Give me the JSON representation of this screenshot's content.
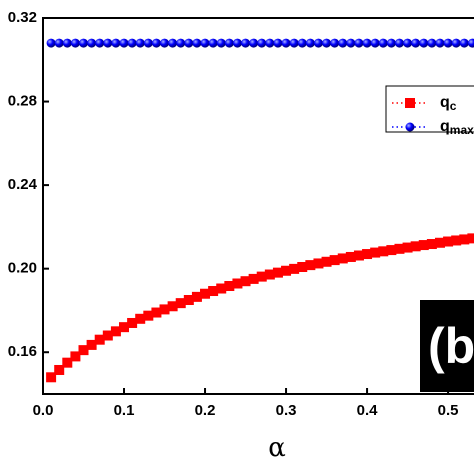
{
  "chart_data": {
    "type": "scatter",
    "x_label": "α",
    "annotation": "(b)",
    "x": [
      0.01,
      0.02,
      0.03,
      0.04,
      0.05,
      0.06,
      0.07,
      0.08,
      0.09,
      0.1,
      0.11,
      0.12,
      0.13,
      0.14,
      0.15,
      0.16,
      0.17,
      0.18,
      0.19,
      0.2,
      0.21,
      0.22,
      0.23,
      0.24,
      0.25,
      0.26,
      0.27,
      0.28,
      0.29,
      0.3,
      0.31,
      0.32,
      0.33,
      0.34,
      0.35,
      0.36,
      0.37,
      0.38,
      0.39,
      0.4,
      0.41,
      0.42,
      0.43,
      0.44,
      0.45,
      0.46,
      0.47,
      0.48,
      0.49,
      0.5,
      0.51,
      0.52,
      0.53
    ],
    "series": [
      {
        "name": "q",
        "name_sub": "c",
        "color": "#ff0000",
        "marker": "square",
        "values": [
          0.148,
          0.1515,
          0.155,
          0.158,
          0.161,
          0.1635,
          0.166,
          0.168,
          0.17,
          0.172,
          0.174,
          0.176,
          0.1775,
          0.179,
          0.1805,
          0.182,
          0.1835,
          0.185,
          0.1865,
          0.188,
          0.1893,
          0.1905,
          0.1917,
          0.1929,
          0.194,
          0.1951,
          0.1962,
          0.1972,
          0.1981,
          0.199,
          0.1999,
          0.2008,
          0.2017,
          0.2025,
          0.2033,
          0.2041,
          0.2049,
          0.2056,
          0.2063,
          0.207,
          0.2077,
          0.2083,
          0.2089,
          0.2095,
          0.2101,
          0.2107,
          0.2113,
          0.2118,
          0.2124,
          0.213,
          0.2135,
          0.214,
          0.2145
        ]
      },
      {
        "name": "q",
        "name_sub": "max",
        "color": "#0000ff",
        "marker": "sphere",
        "values": [
          0.308,
          0.308,
          0.308,
          0.308,
          0.308,
          0.308,
          0.308,
          0.308,
          0.308,
          0.308,
          0.308,
          0.308,
          0.308,
          0.308,
          0.308,
          0.308,
          0.308,
          0.308,
          0.308,
          0.308,
          0.308,
          0.308,
          0.308,
          0.308,
          0.308,
          0.308,
          0.308,
          0.308,
          0.308,
          0.308,
          0.308,
          0.308,
          0.308,
          0.308,
          0.308,
          0.308,
          0.308,
          0.308,
          0.308,
          0.308,
          0.308,
          0.308,
          0.308,
          0.308,
          0.308,
          0.308,
          0.308,
          0.308,
          0.308,
          0.308,
          0.308,
          0.308,
          0.308
        ]
      }
    ],
    "xlim": [
      0,
      0.532
    ],
    "xticks": [
      {
        "value": 0,
        "label": "0.0"
      },
      0.1,
      0.2,
      0.3,
      0.4,
      0.5
    ],
    "ylim": [
      0.14,
      0.32
    ],
    "yticks": [
      0.16,
      {
        "value": 0.2,
        "label": "0.20"
      },
      0.24,
      0.28,
      0.32
    ],
    "grid": false
  }
}
